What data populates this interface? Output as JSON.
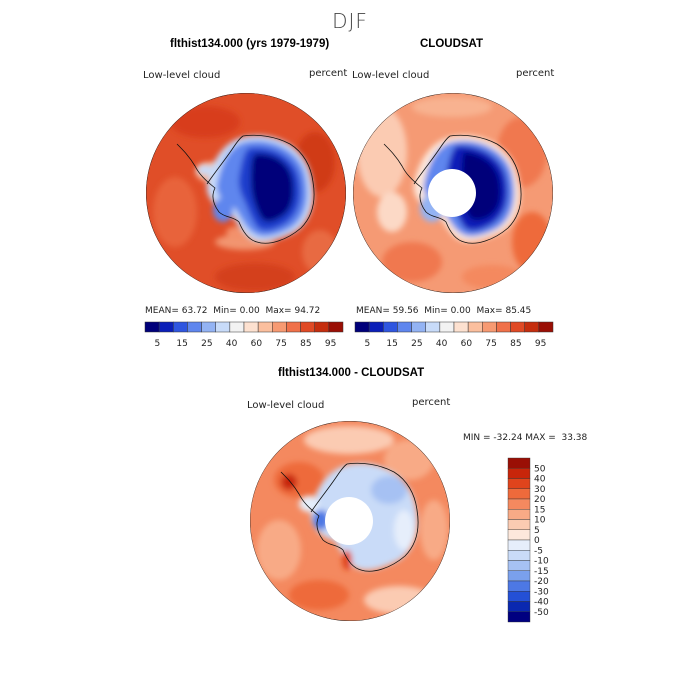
{
  "figure": {
    "season": "DJF"
  },
  "panels": [
    {
      "title": "flthist134.000 (yrs 1979-1979)",
      "variable": "Low-level cloud",
      "units": "percent",
      "stats": {
        "mean_label": "MEAN=",
        "mean": "63.72",
        "min_label": "Min=",
        "min": "0.00",
        "max_label": "Max=",
        "max": "94.72"
      }
    },
    {
      "title": "CLOUDSAT",
      "variable": "Low-level cloud",
      "units": "percent",
      "stats": {
        "mean_label": "MEAN=",
        "mean": "59.56",
        "min_label": "Min=",
        "min": "0.00",
        "max_label": "Max=",
        "max": "85.45"
      }
    },
    {
      "title": "flthist134.000 - CLOUDSAT",
      "variable": "Low-level cloud",
      "units": "percent",
      "minmax": "MIN = -32.24 MAX =  33.38"
    }
  ],
  "colorbar_abs": {
    "tick_labels": [
      "5",
      "15",
      "25",
      "40",
      "60",
      "75",
      "85",
      "95"
    ],
    "colors": [
      "#00007a",
      "#0b1fb8",
      "#2f56e0",
      "#5f86ee",
      "#93b3f4",
      "#c8dbf9",
      "#f2f2f2",
      "#fde1d0",
      "#fbbf9e",
      "#f79a72",
      "#f0714a",
      "#e04a25",
      "#c52e0e",
      "#9a0f05"
    ]
  },
  "colorbar_diff": {
    "tick_labels": [
      "50",
      "40",
      "30",
      "20",
      "15",
      "10",
      "5",
      "0",
      "-5",
      "-10",
      "-15",
      "-20",
      "-30",
      "-40",
      "-50"
    ],
    "colors": [
      "#9a0f05",
      "#c8250a",
      "#e0441c",
      "#ee6a3b",
      "#f4895f",
      "#f8aa86",
      "#fbcbb2",
      "#fde8dc",
      "#e6eefb",
      "#c9dbf8",
      "#a6c1f3",
      "#7aa0ec",
      "#4d78e4",
      "#2450d6",
      "#0a28b0",
      "#000080"
    ]
  },
  "map_palette": {
    "ocean_red": "#e5552e",
    "ocean_orange": "#f07850",
    "ocean_light": "#f7a283",
    "ocean_pale": "#fbd2bf",
    "ice_dark": "#00007a",
    "ice_mid": "#2452d8",
    "ice_light": "#8fb0f1",
    "ice_pale": "#cfe0fa",
    "white": "#ffffff"
  }
}
